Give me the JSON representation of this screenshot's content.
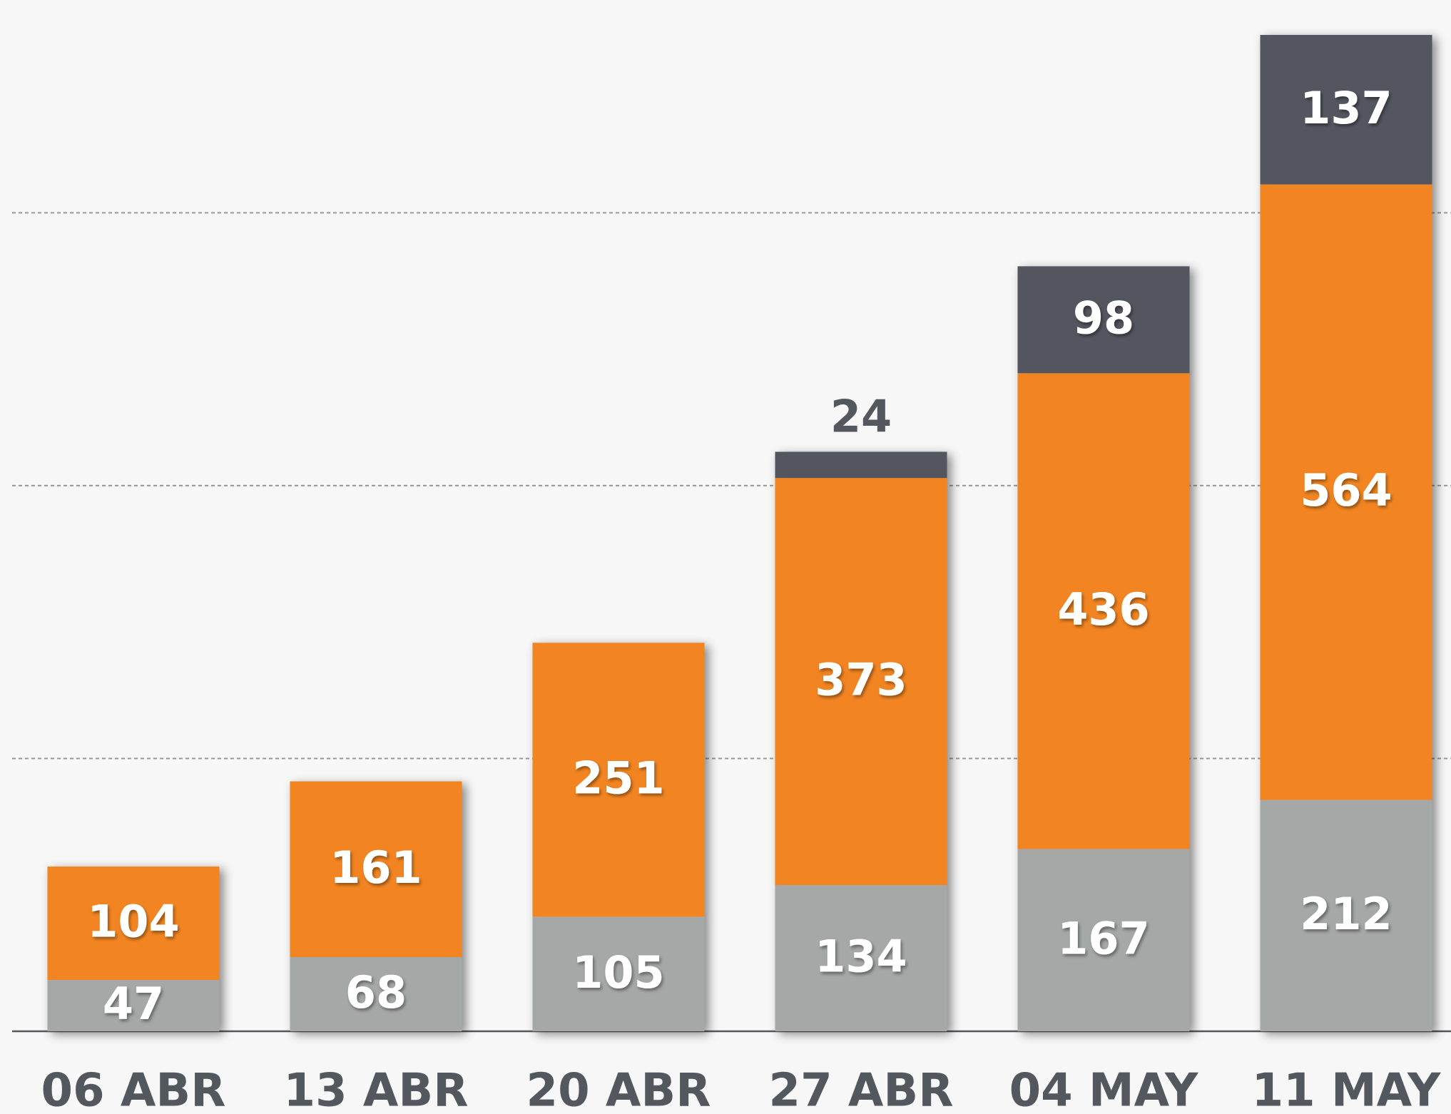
{
  "chart_data": {
    "type": "bar",
    "stacked": true,
    "categories": [
      "06 ABR",
      "13 ABR",
      "20 ABR",
      "27 ABR",
      "04 MAY",
      "11 MAY"
    ],
    "series": [
      {
        "color": "#a5a8a6",
        "values": [
          47,
          68,
          105,
          134,
          167,
          212
        ]
      },
      {
        "color": "#f28524",
        "values": [
          104,
          161,
          251,
          373,
          436,
          564
        ]
      },
      {
        "color": "#53575e",
        "values": [
          null,
          null,
          null,
          24,
          98,
          137
        ]
      }
    ],
    "ylim": [
      0,
      945
    ],
    "yticks": [
      0,
      250,
      500,
      750
    ],
    "grid": true
  }
}
